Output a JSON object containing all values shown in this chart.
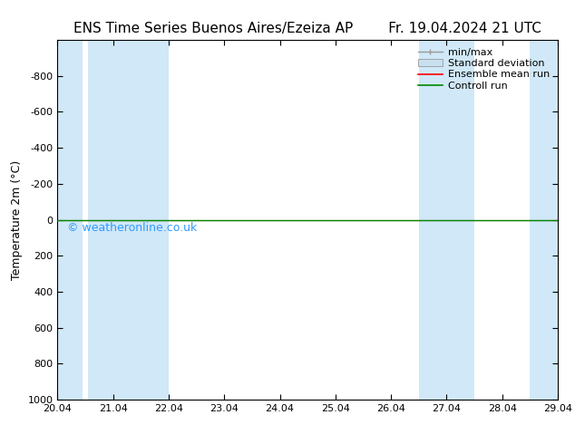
{
  "title_left": "ENS Time Series Buenos Aires/Ezeiza AP",
  "title_right": "Fr. 19.04.2024 21 UTC",
  "ylabel": "Temperature 2m (°C)",
  "xlabel_ticks": [
    "20.04",
    "21.04",
    "22.04",
    "23.04",
    "24.04",
    "25.04",
    "26.04",
    "27.04",
    "28.04",
    "29.04"
  ],
  "xlim": [
    0,
    9
  ],
  "ylim_top": -1000,
  "ylim_bottom": 1000,
  "yticks": [
    -800,
    -600,
    -400,
    -200,
    0,
    200,
    400,
    600,
    800,
    1000
  ],
  "bg_color": "#ffffff",
  "plot_bg_color": "#ffffff",
  "shaded_band_color": "#d0e8f8",
  "shaded_columns": [
    [
      0,
      0.5
    ],
    [
      0.5,
      1.0
    ],
    [
      1.0,
      1.5
    ],
    [
      6.5,
      7.0
    ],
    [
      7.0,
      7.5
    ],
    [
      8.5,
      9.0
    ]
  ],
  "green_line_y": 0,
  "red_line_y": 0,
  "watermark": "© weatheronline.co.uk",
  "watermark_color": "#3399ff",
  "legend_items": [
    {
      "label": "min/max",
      "color": "#aaaaaa",
      "style": "minmax"
    },
    {
      "label": "Standard deviation",
      "color": "#aaccee",
      "style": "stddev"
    },
    {
      "label": "Ensemble mean run",
      "color": "#ff0000",
      "style": "line"
    },
    {
      "label": "Controll run",
      "color": "#008800",
      "style": "line"
    }
  ],
  "title_fontsize": 11,
  "axis_label_fontsize": 9,
  "tick_fontsize": 8,
  "watermark_fontsize": 9,
  "legend_fontsize": 8
}
